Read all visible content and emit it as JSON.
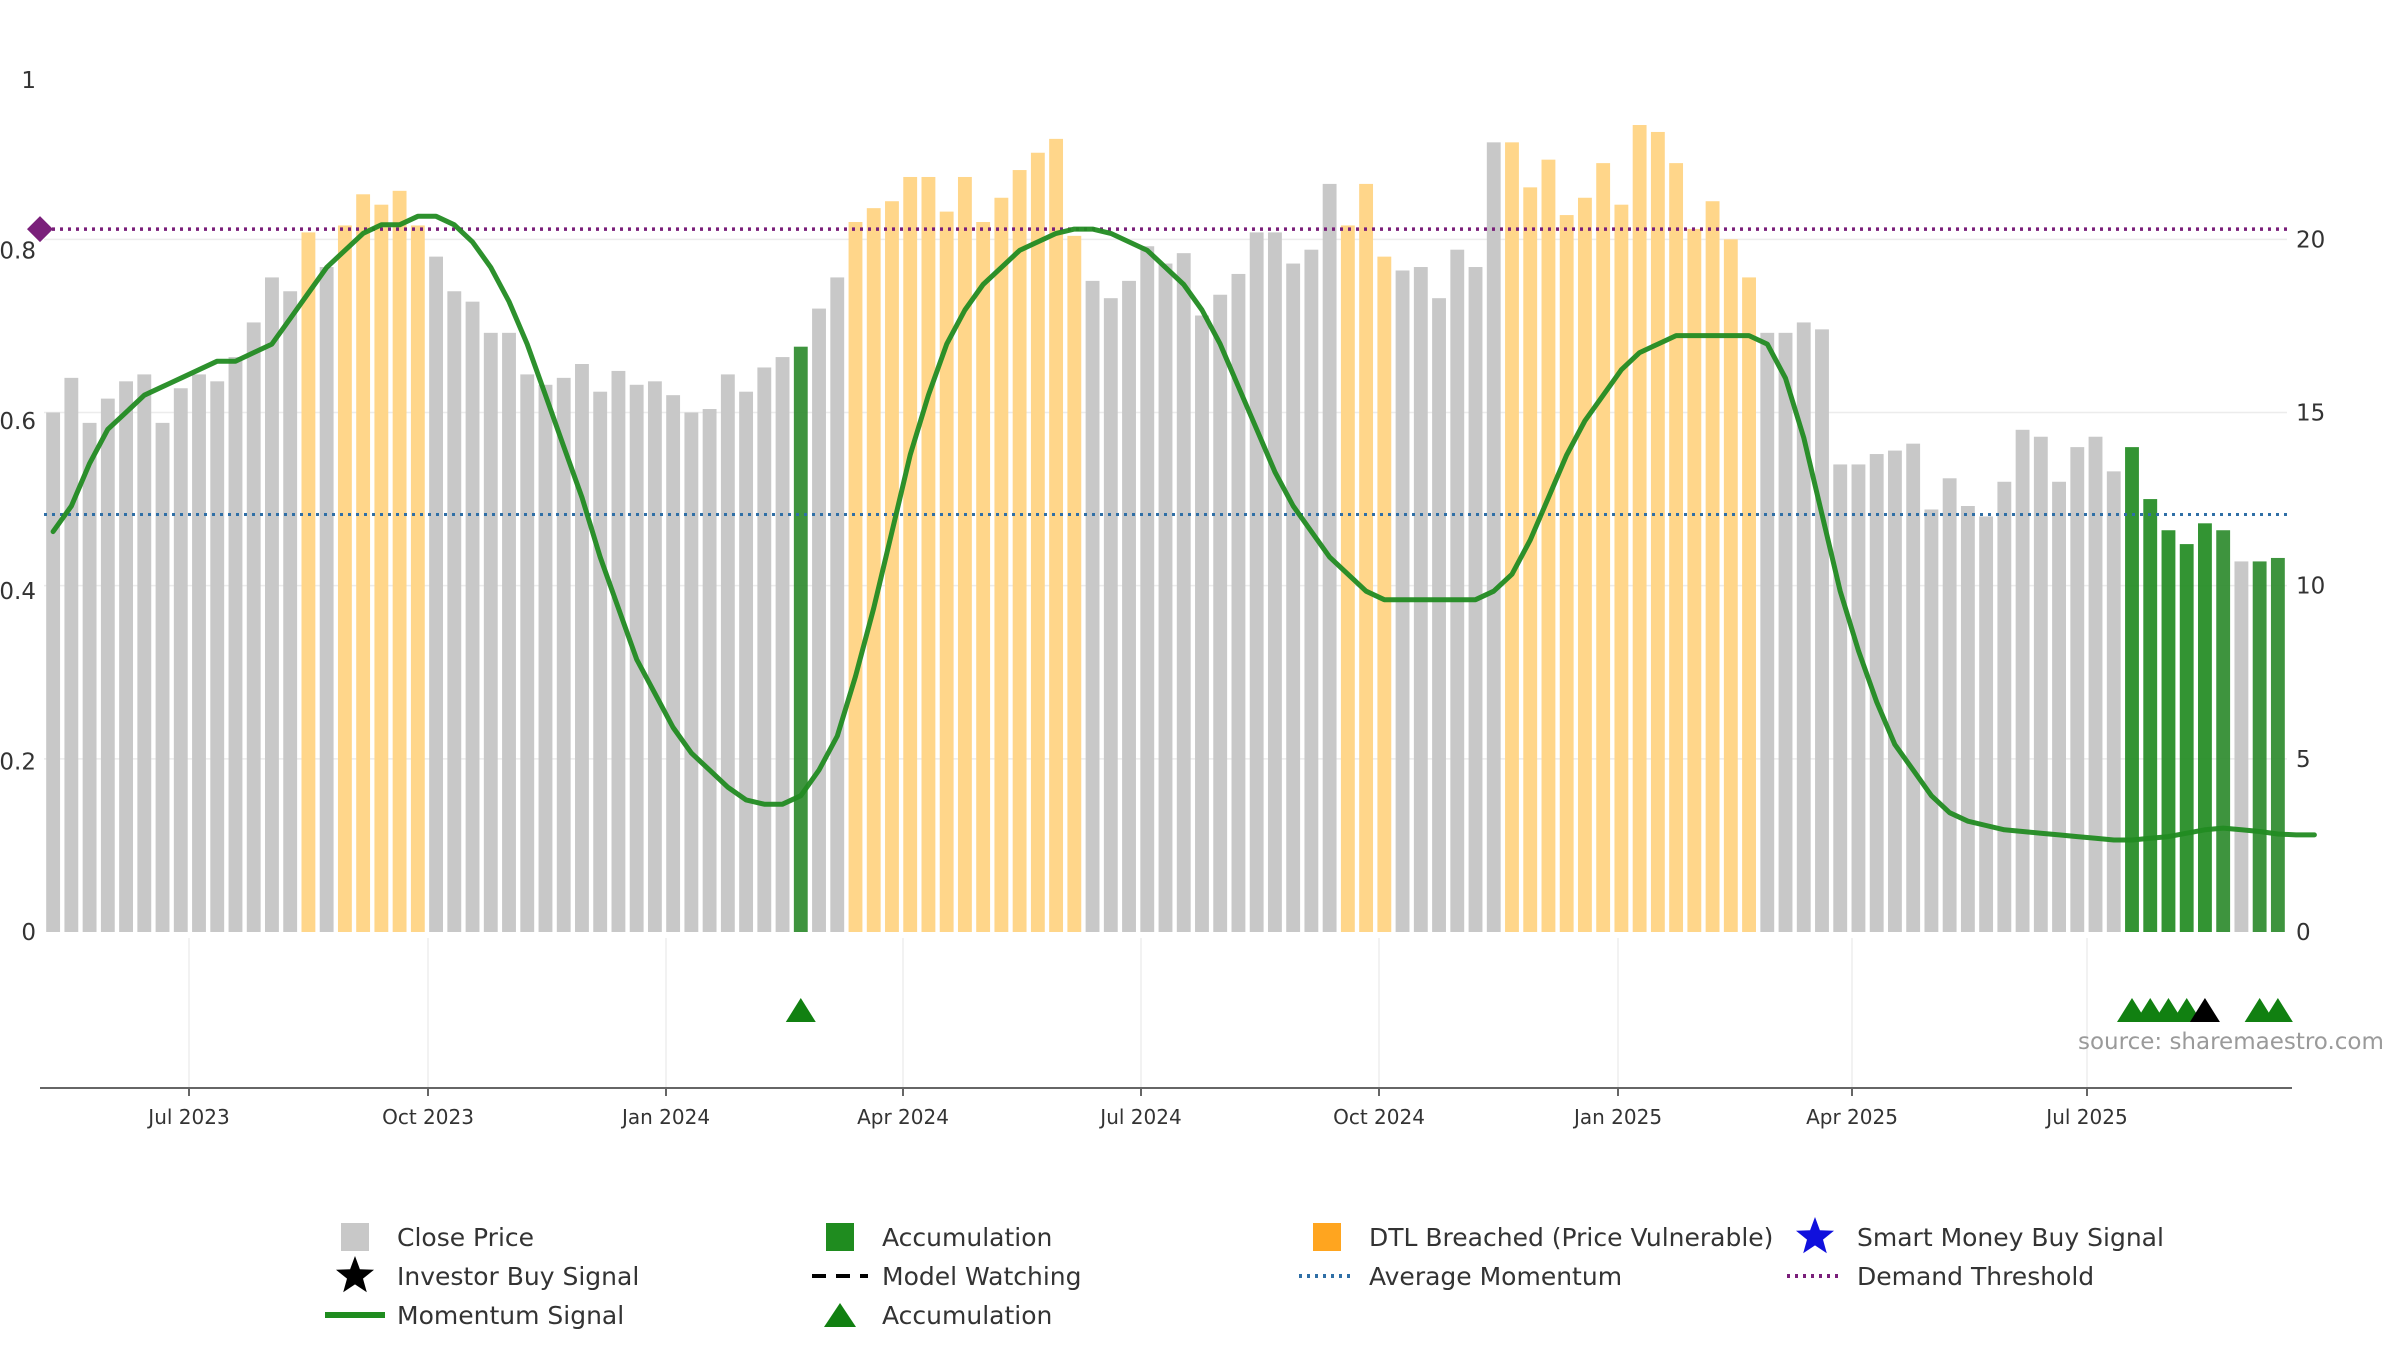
{
  "chart_data": {
    "type": "bar",
    "x_tick_labels": [
      "Jul 2023",
      "Oct 2023",
      "Jan 2024",
      "Apr 2024",
      "Jul 2024",
      "Oct 2024",
      "Jan 2025",
      "Apr 2025",
      "Jul 2025"
    ],
    "left_axis": {
      "ylim": [
        0,
        1
      ],
      "ticks": [
        "0",
        "0.2",
        "0.4",
        "0.6",
        "0.8",
        "1"
      ]
    },
    "right_axis": {
      "ylim": [
        0,
        24.6
      ],
      "ticks": [
        "0",
        "5",
        "10",
        "15",
        "20"
      ]
    },
    "source": "source: sharemaestro.com",
    "series": [
      {
        "name": "Close Price",
        "axis": "right",
        "values": [
          15.0,
          16.0,
          14.7,
          15.4,
          15.9,
          16.1,
          14.7,
          15.7,
          16.1,
          15.9,
          16.6,
          17.6,
          18.9,
          18.5,
          20.2,
          19.2,
          20.4,
          21.3,
          21.0,
          21.4,
          20.4,
          19.5,
          18.5,
          18.2,
          17.3,
          17.3,
          16.1,
          15.8,
          16.0,
          16.4,
          15.6,
          16.2,
          15.8,
          15.9,
          15.5,
          15.0,
          15.1,
          16.1,
          15.6,
          16.3,
          16.6,
          16.9,
          18.0,
          18.9,
          20.5,
          20.9,
          21.1,
          21.8,
          21.8,
          20.8,
          21.8,
          20.5,
          21.2,
          22.0,
          22.5,
          22.9,
          20.1,
          18.8,
          18.3,
          18.8,
          19.8,
          19.3,
          19.6,
          17.8,
          18.4,
          19.0,
          20.2,
          20.2,
          19.3,
          19.7,
          21.6,
          20.4,
          21.6,
          19.5,
          19.1,
          19.2,
          18.3,
          19.7,
          19.2,
          22.8,
          22.8,
          21.5,
          22.3,
          20.7,
          21.2,
          22.2,
          21.0,
          23.3,
          23.1,
          22.2,
          20.3,
          21.1,
          20.0,
          18.9,
          17.3,
          17.3,
          17.6,
          17.4,
          13.5,
          13.5,
          13.8,
          13.9,
          14.1,
          12.2,
          13.1,
          12.3,
          12.0,
          13.0,
          14.5,
          14.3,
          13.0,
          14.0,
          14.3,
          13.3,
          14.0,
          12.5,
          11.6,
          11.2,
          11.8,
          11.6,
          10.7,
          10.7,
          10.8
        ]
      },
      {
        "name": "Momentum Signal",
        "axis": "left",
        "values": [
          0.47,
          0.5,
          0.55,
          0.59,
          0.61,
          0.63,
          0.64,
          0.65,
          0.66,
          0.67,
          0.67,
          0.68,
          0.69,
          0.72,
          0.75,
          0.78,
          0.8,
          0.82,
          0.83,
          0.83,
          0.84,
          0.84,
          0.83,
          0.81,
          0.78,
          0.74,
          0.69,
          0.63,
          0.57,
          0.51,
          0.44,
          0.38,
          0.32,
          0.28,
          0.24,
          0.21,
          0.19,
          0.17,
          0.155,
          0.15,
          0.15,
          0.16,
          0.19,
          0.23,
          0.3,
          0.38,
          0.47,
          0.56,
          0.63,
          0.69,
          0.73,
          0.76,
          0.78,
          0.8,
          0.81,
          0.82,
          0.825,
          0.825,
          0.82,
          0.81,
          0.8,
          0.78,
          0.76,
          0.73,
          0.69,
          0.64,
          0.59,
          0.54,
          0.5,
          0.47,
          0.44,
          0.42,
          0.4,
          0.39,
          0.39,
          0.39,
          0.39,
          0.39,
          0.39,
          0.4,
          0.42,
          0.46,
          0.51,
          0.56,
          0.6,
          0.63,
          0.66,
          0.68,
          0.69,
          0.7,
          0.7,
          0.7,
          0.7,
          0.7,
          0.69,
          0.65,
          0.58,
          0.49,
          0.4,
          0.33,
          0.27,
          0.22,
          0.19,
          0.16,
          0.14,
          0.13,
          0.125,
          0.12,
          0.118,
          0.116,
          0.114,
          0.112,
          0.11,
          0.108,
          0.108,
          0.11,
          0.112,
          0.116,
          0.12,
          0.122,
          0.12,
          0.118,
          0.115,
          0.114,
          0.114
        ]
      }
    ],
    "bar_categories": {
      "accumulation": [
        41,
        114,
        115,
        116,
        117,
        118,
        119,
        121,
        122
      ],
      "dtl_breached": [
        14,
        16,
        17,
        18,
        19,
        20,
        44,
        45,
        46,
        47,
        48,
        49,
        50,
        51,
        52,
        53,
        54,
        55,
        56,
        71,
        72,
        73,
        80,
        81,
        82,
        83,
        84,
        85,
        86,
        87,
        88,
        89,
        90,
        91,
        92,
        93
      ],
      "bright_accumulation": [
        114,
        115,
        116,
        117,
        118
      ]
    },
    "reference_lines": {
      "average_momentum": 0.49,
      "demand_threshold": 0.825
    },
    "markers": {
      "accumulation_triangles": [
        41,
        114,
        115,
        116,
        117,
        121,
        122
      ],
      "investor_buy_signal": [
        118
      ],
      "demand_threshold_marker_left": true
    },
    "colors": {
      "close_price": "#c8c8c8",
      "accumulation": "#2e8b2e",
      "accumulation_bright": "#228b22",
      "dtl_breached": "#ffd68a",
      "momentum": "#228b22",
      "average_momentum": "#2f6fa6",
      "demand_threshold": "#7a1f7a",
      "triangle": "#118011",
      "investor_star": "#000000",
      "smart_money_star": "#1010dd"
    }
  },
  "legend": [
    {
      "label": "Close Price",
      "symbol": "square",
      "color": "#c8c8c8"
    },
    {
      "label": "Accumulation",
      "symbol": "square",
      "color": "#1f8c1f"
    },
    {
      "label": "DTL Breached (Price Vulnerable)",
      "symbol": "square",
      "color": "#ffa51f"
    },
    {
      "label": "Smart Money Buy Signal",
      "symbol": "star",
      "color": "#1010dd"
    },
    {
      "label": "Investor Buy Signal",
      "symbol": "star",
      "color": "#000000"
    },
    {
      "label": "Model Watching",
      "symbol": "dash",
      "color": "#000000"
    },
    {
      "label": "Average Momentum",
      "symbol": "dots",
      "color": "#2f6fa6"
    },
    {
      "label": "Demand Threshold",
      "symbol": "dots",
      "color": "#7a1f7a"
    },
    {
      "label": "Momentum Signal",
      "symbol": "line",
      "color": "#1f8c1f"
    },
    {
      "label": "Accumulation",
      "symbol": "triangle",
      "color": "#118011"
    }
  ]
}
